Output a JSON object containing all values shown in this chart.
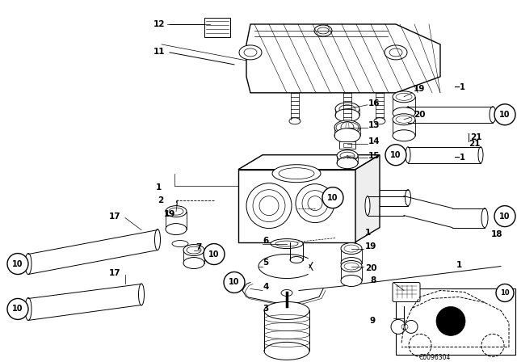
{
  "bg_color": "#ffffff",
  "line_color": "#000000",
  "fig_width": 6.4,
  "fig_height": 4.48,
  "dpi": 100,
  "diagram_code": "C0096304"
}
